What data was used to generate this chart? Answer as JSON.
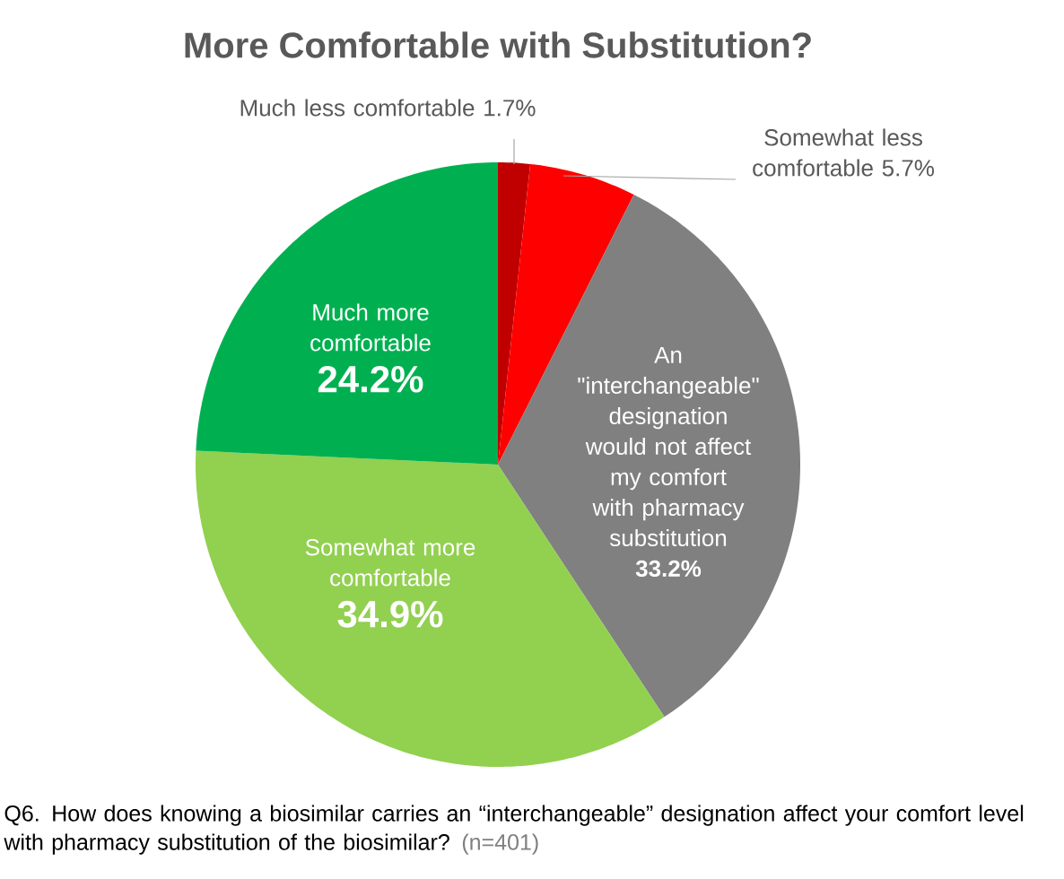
{
  "chart_data": {
    "type": "pie",
    "title": "More Comfortable with Substitution?",
    "categories": [
      "Much less comfortable",
      "Somewhat less comfortable",
      "An \"interchangeable\" designation would not affect my comfort with pharmacy substitution",
      "Somewhat more comfortable",
      "Much more comfortable"
    ],
    "values": [
      1.7,
      5.7,
      33.2,
      34.9,
      24.2
    ],
    "value_labels": [
      "1.7%",
      "5.7%",
      "33.2%",
      "34.9%",
      "24.2%"
    ],
    "colors": [
      "#c00000",
      "#ff0000",
      "#808080",
      "#92d050",
      "#00b050"
    ],
    "annotations": [
      "Q6. How does knowing a biosimilar carries an “interchangeable” designation affect your comfort level with pharmacy substitution of the biosimilar?",
      "(n=401)"
    ]
  }
}
